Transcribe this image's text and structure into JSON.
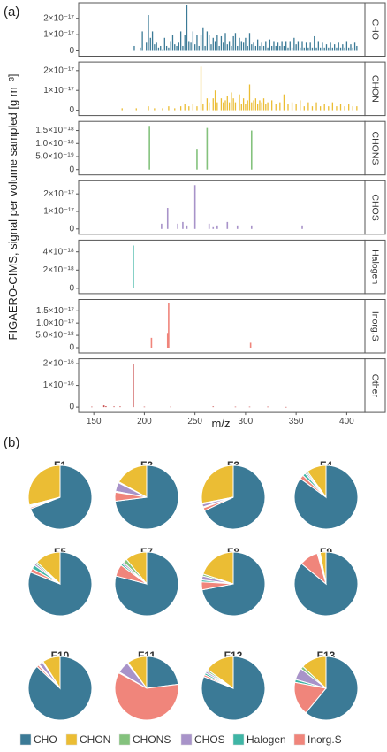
{
  "figure": {
    "panel_a_label": "(a)",
    "panel_b_label": "(b)",
    "y_axis_title": "FIGAERO-CIMS, signal per volume sampled [g m⁻³]",
    "x_axis_title": "m/z"
  },
  "colors": {
    "CHO": "#3b7a96",
    "CHON": "#ebbd34",
    "CHONS": "#84c27d",
    "CHOS": "#a893c9",
    "Halogen": "#3fb5a5",
    "Inorg.S": "#f0857b"
  },
  "chart_data": [
    {
      "type": "bar",
      "subtype": "mass-spectrum-facets",
      "xlabel": "m/z",
      "ylabel": "FIGAERO-CIMS, signal per volume sampled [g m⁻³]",
      "xlim": [
        135,
        418
      ],
      "xticks": [
        "150",
        "200",
        "250",
        "300",
        "350",
        "400"
      ],
      "xtick_values": [
        150,
        200,
        250,
        300,
        350,
        400
      ],
      "panels": [
        {
          "name": "CHO",
          "color": "#3b7a96",
          "ylim": [
            0,
            2.8e-17
          ],
          "yticks": [
            0,
            1e-17,
            2e-17
          ],
          "ytick_labels": [
            "0",
            "1×10⁻¹⁷",
            "2×10⁻¹⁷"
          ],
          "x": [
            190,
            196,
            198,
            202,
            204,
            206,
            208,
            210,
            212,
            214,
            216,
            218,
            220,
            222,
            224,
            226,
            228,
            230,
            232,
            234,
            236,
            238,
            240,
            242,
            244,
            246,
            248,
            250,
            252,
            254,
            256,
            258,
            260,
            262,
            264,
            266,
            268,
            270,
            272,
            274,
            276,
            278,
            280,
            282,
            284,
            286,
            288,
            290,
            292,
            294,
            296,
            298,
            300,
            302,
            304,
            306,
            308,
            310,
            312,
            314,
            316,
            318,
            320,
            322,
            324,
            326,
            328,
            330,
            332,
            334,
            336,
            338,
            340,
            342,
            344,
            346,
            348,
            350,
            352,
            354,
            356,
            358,
            360,
            362,
            364,
            366,
            368,
            370,
            372,
            374,
            376,
            378,
            380,
            382,
            384,
            386,
            388,
            390,
            392,
            394,
            396,
            398,
            400,
            402,
            404,
            406,
            408,
            410
          ],
          "values": [
            3e-18,
            2e-18,
            1.2e-17,
            5e-18,
            2.2e-17,
            8e-18,
            1.2e-17,
            4e-18,
            5e-18,
            2e-18,
            3e-18,
            1e-18,
            8e-18,
            3e-18,
            2e-18,
            6e-18,
            1e-17,
            4e-18,
            3e-18,
            5e-18,
            1.2e-17,
            3e-18,
            1e-17,
            2.8e-17,
            6e-18,
            5e-18,
            1.2e-17,
            4e-18,
            1e-17,
            3e-18,
            1e-17,
            1.4e-17,
            3e-18,
            1.2e-17,
            1e-17,
            4e-18,
            8e-18,
            6e-18,
            1e-17,
            3e-18,
            9e-18,
            5e-18,
            1.1e-17,
            4e-18,
            6e-18,
            3e-18,
            9e-18,
            1.1e-17,
            3e-18,
            8e-18,
            6e-18,
            5e-18,
            8e-18,
            3e-18,
            1.1e-17,
            4e-18,
            5e-18,
            3e-18,
            7e-18,
            3e-18,
            5e-18,
            3e-18,
            6e-18,
            2e-18,
            7e-18,
            3e-18,
            6e-18,
            3e-18,
            5e-18,
            3e-18,
            6e-18,
            3e-18,
            6e-18,
            2e-18,
            6e-18,
            2e-18,
            8e-18,
            4e-18,
            6e-18,
            2e-18,
            6e-18,
            2e-18,
            5e-18,
            2e-18,
            5e-18,
            2e-18,
            9e-18,
            2e-18,
            6e-18,
            2e-18,
            5e-18,
            2e-18,
            4e-18,
            2e-18,
            5e-18,
            2e-18,
            4e-18,
            2e-18,
            5e-18,
            2e-18,
            4e-18,
            2e-18,
            6e-18,
            2e-18,
            4e-18,
            2e-18,
            5e-18,
            3e-18
          ]
        },
        {
          "name": "CHON",
          "color": "#ebbd34",
          "ylim": [
            0,
            2.3e-17
          ],
          "yticks": [
            0,
            1e-17,
            2e-17
          ],
          "ytick_labels": [
            "0",
            "1×10⁻¹⁷",
            "2×10⁻¹⁷"
          ],
          "x": [
            178,
            192,
            204,
            210,
            218,
            224,
            230,
            236,
            240,
            244,
            248,
            252,
            256,
            258,
            262,
            264,
            268,
            270,
            272,
            276,
            278,
            280,
            282,
            284,
            286,
            288,
            290,
            294,
            296,
            298,
            300,
            302,
            304,
            306,
            308,
            310,
            312,
            314,
            316,
            318,
            320,
            322,
            326,
            330,
            334,
            338,
            342,
            346,
            350,
            354,
            358,
            362,
            366,
            370,
            374,
            378,
            382,
            386,
            390,
            394,
            398,
            402,
            406,
            410
          ],
          "values": [
            1e-18,
            1e-18,
            2e-18,
            1e-18,
            1e-18,
            2e-18,
            1e-18,
            2e-18,
            3e-18,
            2e-18,
            3e-18,
            2e-18,
            2.2e-17,
            3e-18,
            6e-18,
            4e-18,
            6e-18,
            1e-17,
            4e-18,
            6e-18,
            4e-18,
            5e-18,
            7e-18,
            4e-18,
            9e-18,
            6e-18,
            4e-18,
            8e-18,
            3e-18,
            6e-18,
            3e-18,
            5e-18,
            1.3e-17,
            4e-18,
            5e-18,
            6e-18,
            3e-18,
            5e-18,
            4e-18,
            6e-18,
            3e-18,
            4e-18,
            5e-18,
            3e-18,
            4e-18,
            8e-18,
            3e-18,
            4e-18,
            3e-18,
            5e-18,
            2e-18,
            4e-18,
            2e-18,
            4e-18,
            2e-18,
            3e-18,
            2e-18,
            4e-18,
            2e-18,
            3e-18,
            2e-18,
            3e-18,
            2e-18,
            2e-18
          ]
        },
        {
          "name": "CHONS",
          "color": "#84c27d",
          "ylim": [
            0,
            1.75e-18
          ],
          "yticks": [
            0,
            5e-19,
            1e-18,
            1.5e-18
          ],
          "ytick_labels": [
            "0",
            "5.0×10⁻¹⁹",
            "1.0×10⁻¹⁸",
            "1.5×10⁻¹⁸"
          ],
          "x": [
            205,
            252,
            262,
            306
          ],
          "values": [
            1.68e-18,
            8e-19,
            1.6e-18,
            1.5e-18
          ]
        },
        {
          "name": "CHOS",
          "color": "#a893c9",
          "ylim": [
            0,
            2.6e-17
          ],
          "yticks": [
            0,
            1e-17,
            2e-17
          ],
          "ytick_labels": [
            "0",
            "1×10⁻¹⁷",
            "2×10⁻¹⁷"
          ],
          "x": [
            217,
            223,
            233,
            238,
            242,
            250,
            264,
            268,
            272,
            282,
            292,
            306,
            356
          ],
          "values": [
            3e-18,
            1.2e-17,
            3e-18,
            4e-18,
            2e-18,
            2.5e-17,
            3e-18,
            1e-18,
            2e-18,
            4e-18,
            2e-18,
            2e-18,
            2e-18
          ]
        },
        {
          "name": "Halogen",
          "color": "#3fb5a5",
          "ylim": [
            0,
            5e-18
          ],
          "yticks": [
            0,
            2e-18,
            4e-18
          ],
          "ytick_labels": [
            "0",
            "2×10⁻¹⁸",
            "4×10⁻¹⁸"
          ],
          "x": [
            189
          ],
          "values": [
            4.7e-18
          ]
        },
        {
          "name": "Inorg.S",
          "color": "#f0857b",
          "ylim": [
            0,
            1.85e-17
          ],
          "yticks": [
            0,
            5e-18,
            1e-17,
            1.5e-17
          ],
          "ytick_labels": [
            "0",
            "5.0×10⁻¹⁸",
            "1.0×10⁻¹⁷",
            "1.5×10⁻¹⁷"
          ],
          "x": [
            207,
            223,
            224,
            305
          ],
          "values": [
            4e-18,
            6e-18,
            1.8e-17,
            2e-18
          ]
        },
        {
          "name": "Other",
          "color": "#c94f4f",
          "ylim": [
            0,
            2.1e-16
          ],
          "yticks": [
            0,
            1e-16,
            2e-16
          ],
          "ytick_labels": [
            "0",
            "1×10⁻¹⁶",
            "2×10⁻¹⁶"
          ],
          "x": [
            148,
            160,
            162,
            170,
            176,
            189,
            200,
            226,
            268,
            290,
            304,
            322,
            340
          ],
          "values": [
            2e-18,
            8e-18,
            4e-18,
            3e-18,
            3e-18,
            2e-16,
            2e-18,
            2e-18,
            3e-18,
            2e-18,
            2e-18,
            2e-18,
            1e-18
          ]
        }
      ]
    },
    {
      "type": "pie",
      "categories": [
        "CHO",
        "CHON",
        "CHONS",
        "CHOS",
        "Halogen",
        "Inorg.S"
      ],
      "legend_position": "bottom",
      "series": [
        {
          "name": "F1",
          "values": [
            69,
            29,
            0.5,
            0.5,
            0.3,
            0.7
          ]
        },
        {
          "name": "F2",
          "values": [
            73,
            17,
            0.5,
            4.5,
            0.5,
            4.5
          ]
        },
        {
          "name": "F3",
          "values": [
            68,
            28,
            0.5,
            1.5,
            0.5,
            1.5
          ]
        },
        {
          "name": "F4",
          "values": [
            85,
            10,
            0.7,
            0.8,
            1.5,
            2
          ]
        },
        {
          "name": "F5",
          "values": [
            81,
            13,
            1,
            1,
            2,
            2
          ]
        },
        {
          "name": "F7",
          "values": [
            79,
            11,
            2,
            1,
            1,
            6
          ]
        },
        {
          "name": "F8",
          "values": [
            72,
            20,
            1,
            2,
            1,
            4
          ]
        },
        {
          "name": "F9",
          "values": [
            86,
            3,
            0.5,
            0.5,
            0.5,
            9.5
          ]
        },
        {
          "name": "F10",
          "values": [
            87,
            9,
            0.5,
            2,
            0.5,
            1
          ]
        },
        {
          "name": "F11",
          "values": [
            23,
            10,
            0.5,
            6,
            0.5,
            60
          ]
        },
        {
          "name": "F12",
          "values": [
            81,
            15,
            1,
            1,
            1,
            1
          ]
        },
        {
          "name": "F13",
          "values": [
            61,
            13,
            1.5,
            6,
            1.5,
            17
          ]
        }
      ]
    }
  ]
}
